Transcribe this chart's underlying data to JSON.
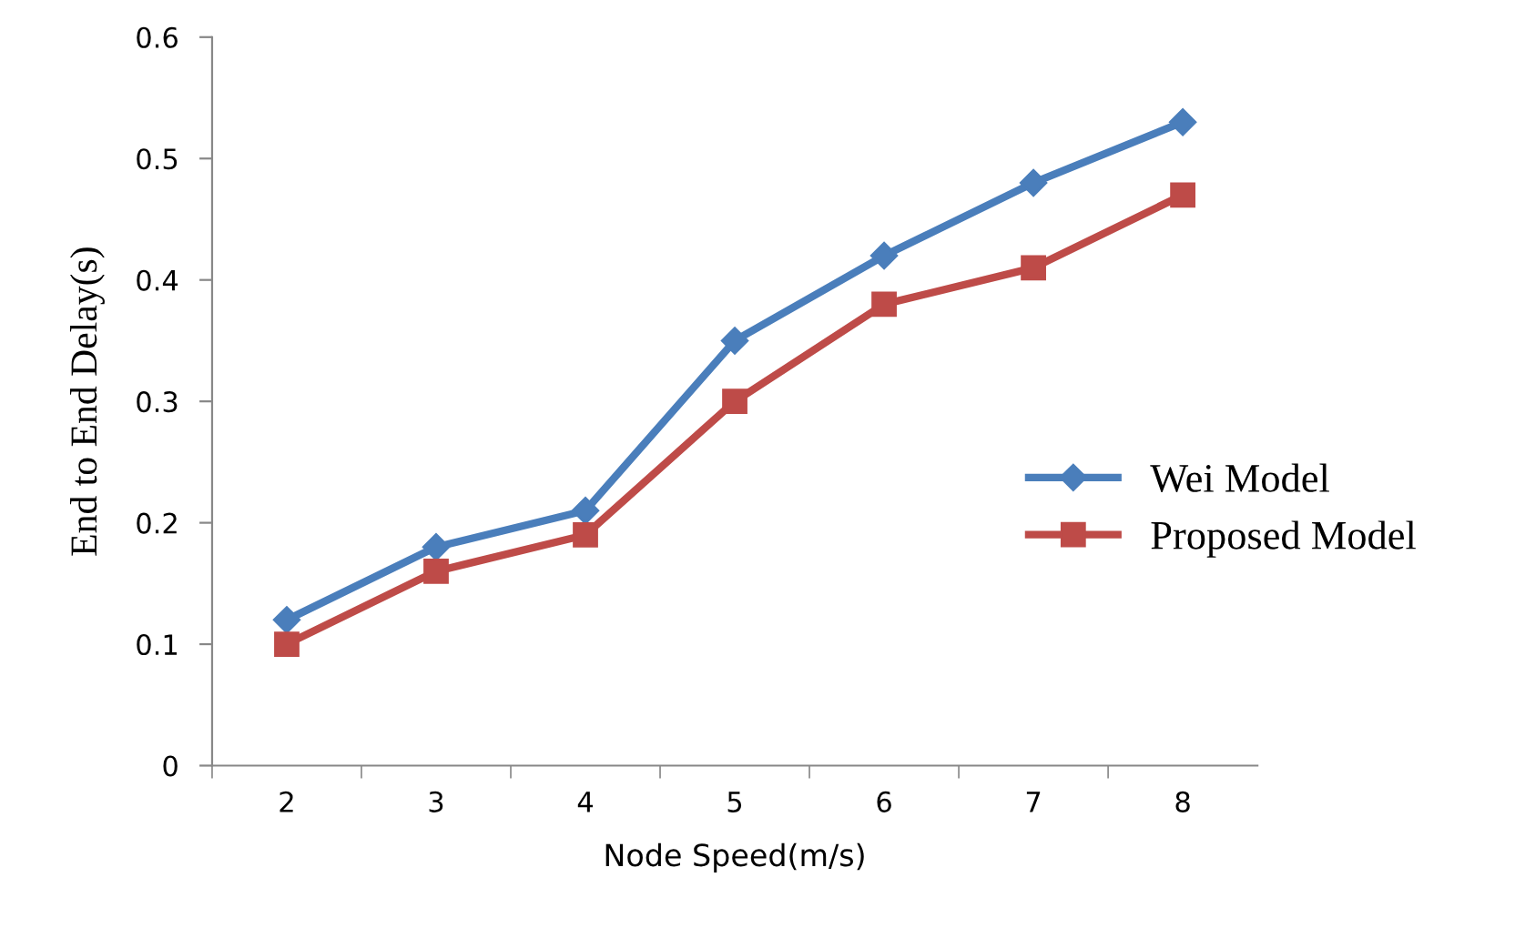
{
  "chart_data": {
    "type": "line",
    "xlabel": "Node Speed(m/s)",
    "ylabel": "End to End Delay(s)",
    "categories": [
      "2",
      "3",
      "4",
      "5",
      "6",
      "7",
      "8"
    ],
    "series": [
      {
        "name": "Wei Model",
        "color": "#4a7ebb",
        "marker": "diamond",
        "values": [
          0.12,
          0.18,
          0.21,
          0.35,
          0.42,
          0.48,
          0.53
        ]
      },
      {
        "name": "Proposed Model",
        "color": "#be4b48",
        "marker": "square",
        "values": [
          0.1,
          0.16,
          0.19,
          0.3,
          0.38,
          0.41,
          0.47
        ]
      }
    ],
    "ylim": [
      0,
      0.6
    ],
    "yticks": [
      0,
      0.1,
      0.2,
      0.3,
      0.4,
      0.5,
      0.6
    ],
    "grid": false,
    "legend": "right"
  }
}
